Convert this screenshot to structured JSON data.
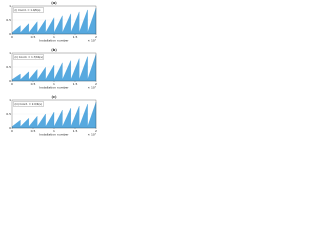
{
  "chart_data": [
    {
      "type": "area",
      "title": "(a)",
      "x_label": "Installation number",
      "x_scale_label": "× 10⁷",
      "xlim": [
        0,
        2
      ],
      "xticks": [
        0,
        0.5,
        1,
        1.5,
        2
      ],
      "ylim": [
        0,
        1
      ],
      "yticks": [
        0,
        0.5,
        1
      ],
      "series": [
        {
          "name": "(i) Coord. = 1.0/K(s)",
          "color": "#3a9ad9",
          "x": [
            0,
            0.2,
            0.2,
            0.4,
            0.4,
            0.6,
            0.6,
            0.8,
            0.8,
            1,
            1,
            1.2,
            1.2,
            1.4,
            1.4,
            1.6,
            1.6,
            1.8,
            1.8,
            2
          ],
          "values": [
            0.05,
            0.3,
            0.05,
            0.37,
            0.05,
            0.44,
            0.05,
            0.51,
            0.05,
            0.58,
            0.05,
            0.65,
            0.05,
            0.72,
            0.05,
            0.79,
            0.05,
            0.86,
            0.05,
            0.93
          ]
        }
      ]
    },
    {
      "type": "area",
      "title": "(b)",
      "x_label": "Installation number",
      "x_scale_label": "× 10⁷",
      "xlim": [
        0,
        2
      ],
      "xticks": [
        0,
        0.5,
        1,
        1.5,
        2
      ],
      "ylim": [
        0,
        1
      ],
      "yticks": [
        0,
        0.5,
        1
      ],
      "series": [
        {
          "name": "(ii) Coord. = 1.7/Kb(s)",
          "color": "#3a9ad9",
          "x": [
            0,
            0.2,
            0.2,
            0.4,
            0.4,
            0.6,
            0.6,
            0.8,
            0.8,
            1,
            1,
            1.2,
            1.2,
            1.4,
            1.4,
            1.6,
            1.6,
            1.8,
            1.8,
            2
          ],
          "values": [
            0.05,
            0.25,
            0.05,
            0.33,
            0.05,
            0.41,
            0.05,
            0.49,
            0.05,
            0.57,
            0.05,
            0.65,
            0.05,
            0.73,
            0.05,
            0.8,
            0.05,
            0.87,
            0.05,
            0.95
          ]
        }
      ]
    },
    {
      "type": "area",
      "title": "(c)",
      "x_label": "Installation number",
      "x_scale_label": "× 10⁷",
      "xlim": [
        0,
        2
      ],
      "xticks": [
        0,
        0.5,
        1,
        1.5,
        2
      ],
      "ylim": [
        0,
        1
      ],
      "yticks": [
        0,
        0.5,
        1
      ],
      "series": [
        {
          "name": "(iii) Coord. = 2.0/K(s)",
          "color": "#3a9ad9",
          "x": [
            0,
            0.2,
            0.2,
            0.4,
            0.4,
            0.6,
            0.6,
            0.8,
            0.8,
            1,
            1,
            1.2,
            1.2,
            1.4,
            1.4,
            1.6,
            1.6,
            1.8,
            1.8,
            2
          ],
          "values": [
            0.05,
            0.28,
            0.05,
            0.35,
            0.05,
            0.42,
            0.05,
            0.5,
            0.05,
            0.57,
            0.05,
            0.64,
            0.05,
            0.71,
            0.05,
            0.78,
            0.05,
            0.85,
            0.05,
            0.92
          ]
        }
      ]
    }
  ]
}
